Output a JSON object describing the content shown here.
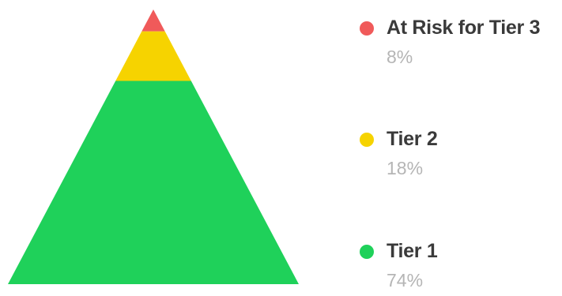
{
  "chart_data": {
    "type": "pyramid",
    "title": "",
    "legend_position": "right",
    "order": "top-to-bottom",
    "series": [
      {
        "name": "At Risk for Tier 3",
        "value": 8,
        "value_label": "8%",
        "color": "#f05a5a"
      },
      {
        "name": "Tier 2",
        "value": 18,
        "value_label": "18%",
        "color": "#f6d300"
      },
      {
        "name": "Tier 1",
        "value": 74,
        "value_label": "74%",
        "color": "#1fd15a"
      }
    ]
  }
}
